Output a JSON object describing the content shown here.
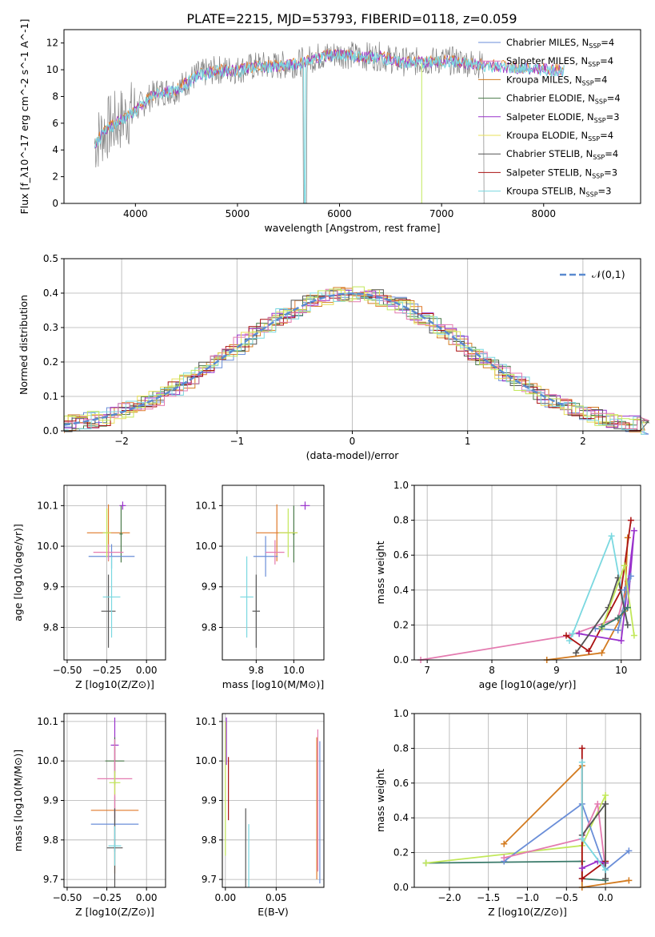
{
  "title": "PLATE=2215, MJD=53793, FIBERID=0118, z=0.059",
  "colors": [
    "#6a8ed8",
    "#e07a2a",
    "#d37b20",
    "#4a7a4a",
    "#9932cc",
    "#e8e05a",
    "#555555",
    "#aa1111",
    "#7ad8e0",
    "#e47bb0",
    "#c2e85a",
    "#3a7a6a"
  ],
  "charts": {
    "spectrum": {
      "type": "line",
      "xlabel": "wavelength [Angstrom, rest frame]",
      "ylabel": "Flux [f_λ10^-17 erg cm^-2 s^-1 A^-1]",
      "xlim": [
        3300,
        8950
      ],
      "ylim": [
        0,
        13
      ],
      "xticks": [
        4000,
        5000,
        6000,
        7000,
        8000
      ],
      "yticks": [
        0,
        2,
        4,
        6,
        8,
        10,
        12
      ],
      "legend": [
        "Chabrier MILES, N_SSP=4",
        "Salpeter MILES, N_SSP=4",
        "Kroupa MILES, N_SSP=4",
        "Chabrier ELODIE, N_SSP=4",
        "Salpeter ELODIE, N_SSP=3",
        "Kroupa ELODIE, N_SSP=4",
        "Chabrier STELIB, N_SSP=4",
        "Salpeter STELIB, N_SSP=3",
        "Kroupa STELIB, N_SSP=3"
      ],
      "continuum": [
        [
          3600,
          4.5
        ],
        [
          3700,
          5.5
        ],
        [
          3800,
          6
        ],
        [
          3900,
          6.5
        ],
        [
          4000,
          7
        ],
        [
          4200,
          8.3
        ],
        [
          4400,
          8.5
        ],
        [
          4600,
          9.6
        ],
        [
          4800,
          10
        ],
        [
          5000,
          10
        ],
        [
          5200,
          10.3
        ],
        [
          5400,
          10.3
        ],
        [
          5600,
          10.5
        ],
        [
          5800,
          11
        ],
        [
          6000,
          11.2
        ],
        [
          6200,
          11
        ],
        [
          6400,
          11
        ],
        [
          6600,
          10.6
        ],
        [
          6800,
          10.6
        ],
        [
          7000,
          10.7
        ],
        [
          7200,
          10.6
        ],
        [
          7400,
          10.4
        ],
        [
          7700,
          10.2
        ],
        [
          8000,
          10.1
        ],
        [
          8200,
          10
        ]
      ]
    },
    "residual": {
      "type": "histogram",
      "xlabel": "(data-model)/error",
      "ylabel": "Normed distribution",
      "xlim": [
        -2.5,
        2.5
      ],
      "ylim": [
        0,
        0.5
      ],
      "xticks": [
        -2,
        -1,
        0,
        1,
        2
      ],
      "yticks": [
        0.0,
        0.1,
        0.2,
        0.3,
        0.4,
        0.5
      ],
      "legend": "𝒩(0,1)"
    },
    "age_vs_z": {
      "type": "scatter",
      "xlabel": "Z [log10(Z/Z⊙)]",
      "ylabel": "age  [log10(age/yr)]",
      "xlim": [
        -0.52,
        0.12
      ],
      "ylim": [
        9.72,
        10.15
      ],
      "xticks": [
        -0.5,
        -0.25,
        0.0
      ],
      "yticks": [
        9.8,
        9.9,
        10.0,
        10.1
      ],
      "points": [
        {
          "x": -0.24,
          "y": 10.033,
          "ex": 0.27,
          "ey": 0.07,
          "c": 1
        },
        {
          "x": -0.15,
          "y": 10.1,
          "ex": 0.04,
          "ey": 0.01,
          "c": 4
        },
        {
          "x": -0.16,
          "y": 10.03,
          "ex": 0.02,
          "ey": 0.07,
          "c": 3
        },
        {
          "x": -0.22,
          "y": 9.975,
          "ex": 0.29,
          "ey": 0.03,
          "c": 0
        },
        {
          "x": -0.24,
          "y": 9.985,
          "ex": 0.19,
          "ey": 0.02,
          "c": 9
        },
        {
          "x": -0.24,
          "y": 9.84,
          "ex": 0.09,
          "ey": 0.09,
          "c": 6
        },
        {
          "x": -0.22,
          "y": 9.875,
          "ex": 0.11,
          "ey": 0.1,
          "c": 8
        },
        {
          "x": -0.25,
          "y": 10.033,
          "ex": 0.05,
          "ey": 0.06,
          "c": 10
        }
      ]
    },
    "age_vs_mass": {
      "type": "scatter",
      "xlabel": "mass [log10(M/M⊙)]",
      "ylabel": "",
      "xlim": [
        9.62,
        10.16
      ],
      "ylim": [
        9.72,
        10.15
      ],
      "xticks": [
        9.8,
        10.0
      ],
      "yticks": [
        9.8,
        9.9,
        10.0,
        10.1
      ],
      "points": [
        {
          "x": 9.91,
          "y": 10.033,
          "ex": 0.22,
          "ey": 0.07,
          "c": 1
        },
        {
          "x": 10.06,
          "y": 10.1,
          "ex": 0.05,
          "ey": 0.01,
          "c": 4
        },
        {
          "x": 10.0,
          "y": 10.03,
          "ex": 0.01,
          "ey": 0.07,
          "c": 3
        },
        {
          "x": 9.85,
          "y": 9.975,
          "ex": 0.13,
          "ey": 0.05,
          "c": 0
        },
        {
          "x": 9.9,
          "y": 9.985,
          "ex": 0.1,
          "ey": 0.03,
          "c": 9
        },
        {
          "x": 9.8,
          "y": 9.84,
          "ex": 0.04,
          "ey": 0.09,
          "c": 6
        },
        {
          "x": 9.75,
          "y": 9.875,
          "ex": 0.07,
          "ey": 0.1,
          "c": 8
        },
        {
          "x": 9.97,
          "y": 10.033,
          "ex": 0.1,
          "ey": 0.06,
          "c": 10
        }
      ]
    },
    "mass_vs_z": {
      "type": "scatter",
      "xlabel": "Z [log10(Z/Z⊙)]",
      "ylabel": "mass [log10(M/M⊙)]",
      "xlim": [
        -0.52,
        0.12
      ],
      "ylim": [
        9.68,
        10.12
      ],
      "xticks": [
        -0.5,
        -0.25,
        0.0
      ],
      "yticks": [
        9.7,
        9.8,
        9.9,
        10.0,
        10.1
      ],
      "points": [
        {
          "x": -0.2,
          "y": 9.875,
          "ex": 0.3,
          "ey": 0.16,
          "c": 1
        },
        {
          "x": -0.2,
          "y": 10.04,
          "ex": 0.05,
          "ey": 0.07,
          "c": 4
        },
        {
          "x": -0.2,
          "y": 10.0,
          "ex": 0.12,
          "ey": 0.06,
          "c": 3
        },
        {
          "x": -0.2,
          "y": 9.84,
          "ex": 0.3,
          "ey": 0.07,
          "c": 0
        },
        {
          "x": -0.2,
          "y": 9.955,
          "ex": 0.22,
          "ey": 0.1,
          "c": 9
        },
        {
          "x": -0.2,
          "y": 9.78,
          "ex": 0.1,
          "ey": 0.1,
          "c": 6
        },
        {
          "x": -0.2,
          "y": 9.785,
          "ex": 0.08,
          "ey": 0.05,
          "c": 8
        },
        {
          "x": -0.2,
          "y": 9.945,
          "ex": 0.07,
          "ey": 0.03,
          "c": 10
        }
      ]
    },
    "mass_vs_ebv": {
      "type": "scatter",
      "xlabel": "E(B-V)",
      "ylabel": "",
      "xlim": [
        -0.003,
        0.097
      ],
      "ylim": [
        9.68,
        10.12
      ],
      "xticks": [
        0.0,
        0.05
      ],
      "yticks": [
        9.7,
        9.8,
        9.9,
        10.0,
        10.1
      ],
      "points": [
        {
          "x": 0.001,
          "y": 10.05,
          "ex": 0.0,
          "ey": 0.06,
          "c": 4
        },
        {
          "x": 0.0,
          "y": 9.93,
          "ex": 0.0,
          "ey": 0.17,
          "c": 10
        },
        {
          "x": 0.003,
          "y": 9.93,
          "ex": 0.0,
          "ey": 0.08,
          "c": 7
        },
        {
          "x": 0.02,
          "y": 9.78,
          "ex": 0.0,
          "ey": 0.1,
          "c": 6
        },
        {
          "x": 0.023,
          "y": 9.76,
          "ex": 0.0,
          "ey": 0.08,
          "c": 8
        },
        {
          "x": 0.09,
          "y": 9.88,
          "ex": 0.0,
          "ey": 0.18,
          "c": 1
        },
        {
          "x": 0.091,
          "y": 9.9,
          "ex": 0.0,
          "ey": 0.18,
          "c": 9
        },
        {
          "x": 0.093,
          "y": 9.87,
          "ex": 0.0,
          "ey": 0.18,
          "c": 0
        }
      ]
    },
    "weight_vs_age": {
      "type": "line",
      "xlabel": "age  [log10(age/yr)]",
      "ylabel": "mass weight",
      "xlim": [
        6.8,
        10.3
      ],
      "ylim": [
        0.0,
        1.0
      ],
      "xticks": [
        7,
        8,
        9,
        10
      ],
      "yticks": [
        0.0,
        0.2,
        0.4,
        0.6,
        0.8,
        1.0
      ],
      "series": [
        {
          "c": 9,
          "points": [
            [
              6.9,
              0.0
            ],
            [
              9.2,
              0.14
            ],
            [
              9.95,
              0.24
            ],
            [
              10.1,
              0.45
            ]
          ]
        },
        {
          "c": 2,
          "points": [
            [
              8.85,
              0.0
            ],
            [
              9.7,
              0.04
            ],
            [
              10.05,
              0.28
            ],
            [
              10.1,
              0.7
            ]
          ]
        },
        {
          "c": 8,
          "points": [
            [
              9.2,
              0.11
            ],
            [
              9.25,
              0.15
            ],
            [
              9.85,
              0.71
            ],
            [
              10.1,
              0.2
            ]
          ]
        },
        {
          "c": 7,
          "points": [
            [
              9.15,
              0.14
            ],
            [
              9.5,
              0.05
            ],
            [
              10.0,
              0.4
            ],
            [
              10.15,
              0.8
            ]
          ]
        },
        {
          "c": 4,
          "points": [
            [
              9.35,
              0.15
            ],
            [
              10.0,
              0.11
            ],
            [
              10.2,
              0.74
            ],
            [
              10.1,
              0.3
            ]
          ]
        },
        {
          "c": 0,
          "points": [
            [
              9.6,
              0.18
            ],
            [
              9.95,
              0.17
            ],
            [
              10.15,
              0.48
            ],
            [
              10.05,
              0.4
            ]
          ]
        },
        {
          "c": 6,
          "points": [
            [
              9.3,
              0.04
            ],
            [
              9.8,
              0.3
            ],
            [
              9.95,
              0.47
            ],
            [
              10.1,
              0.2
            ]
          ]
        },
        {
          "c": 10,
          "points": [
            [
              9.7,
              0.18
            ],
            [
              10.05,
              0.54
            ],
            [
              10.2,
              0.14
            ]
          ]
        },
        {
          "c": 11,
          "points": [
            [
              9.7,
              0.19
            ],
            [
              9.95,
              0.24
            ],
            [
              10.1,
              0.3
            ]
          ]
        }
      ]
    },
    "weight_vs_z": {
      "type": "line",
      "xlabel": "Z [log10(Z/Z⊙)]",
      "ylabel": "mass weight",
      "xlim": [
        -2.45,
        0.45
      ],
      "ylim": [
        0.0,
        1.0
      ],
      "xticks": [
        -2.0,
        -1.5,
        -1.0,
        -0.5,
        0.0
      ],
      "yticks": [
        0.0,
        0.2,
        0.4,
        0.6,
        0.8,
        1.0
      ],
      "series": [
        {
          "c": 11,
          "points": [
            [
              -2.3,
              0.14
            ],
            [
              -0.3,
              0.15
            ],
            [
              -0.3,
              0.05
            ],
            [
              0.0,
              0.04
            ]
          ]
        },
        {
          "c": 10,
          "points": [
            [
              -2.3,
              0.14
            ],
            [
              -0.3,
              0.24
            ],
            [
              0.0,
              0.53
            ],
            [
              0.0,
              0.14
            ]
          ]
        },
        {
          "c": 2,
          "points": [
            [
              -1.3,
              0.25
            ],
            [
              -0.3,
              0.7
            ],
            [
              -0.3,
              0.0
            ],
            [
              0.3,
              0.04
            ]
          ]
        },
        {
          "c": 0,
          "points": [
            [
              -1.3,
              0.15
            ],
            [
              -0.3,
              0.48
            ],
            [
              0.0,
              0.1
            ],
            [
              0.3,
              0.21
            ]
          ]
        },
        {
          "c": 9,
          "points": [
            [
              -1.3,
              0.17
            ],
            [
              -0.3,
              0.28
            ],
            [
              -0.1,
              0.48
            ],
            [
              0.0,
              0.1
            ]
          ]
        },
        {
          "c": 7,
          "points": [
            [
              -0.3,
              0.8
            ],
            [
              -0.3,
              0.05
            ],
            [
              0.0,
              0.15
            ]
          ]
        },
        {
          "c": 4,
          "points": [
            [
              -0.3,
              0.11
            ],
            [
              -0.1,
              0.15
            ],
            [
              0.0,
              0.14
            ]
          ]
        },
        {
          "c": 6,
          "points": [
            [
              -0.3,
              0.3
            ],
            [
              0.0,
              0.48
            ],
            [
              0.0,
              0.05
            ]
          ]
        },
        {
          "c": 8,
          "points": [
            [
              -0.3,
              0.72
            ],
            [
              -0.3,
              0.28
            ],
            [
              0.0,
              0.1
            ]
          ]
        }
      ]
    }
  }
}
